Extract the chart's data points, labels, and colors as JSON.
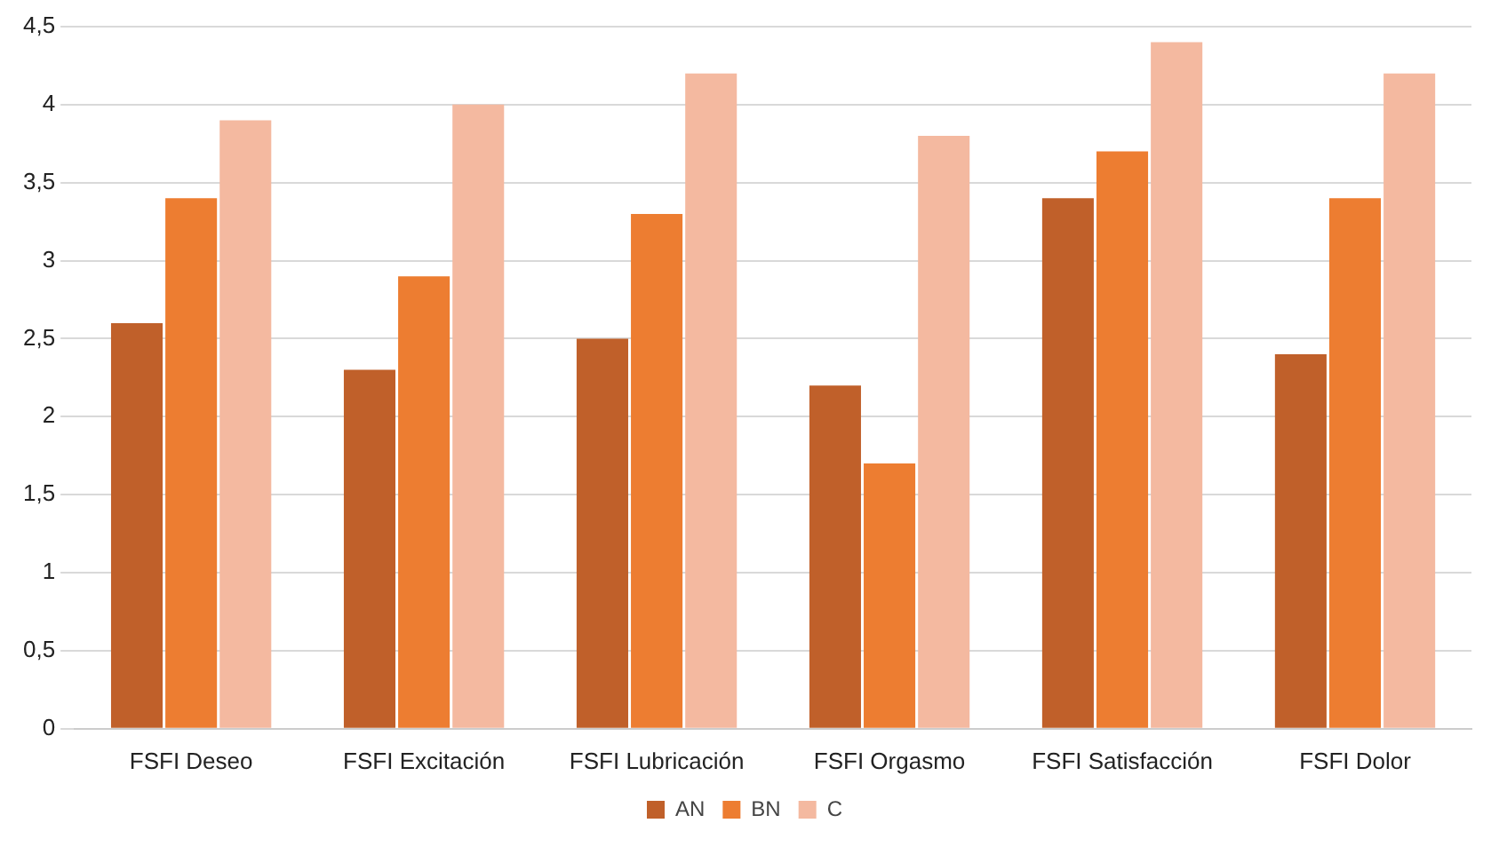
{
  "chart_data": {
    "type": "bar",
    "categories": [
      "FSFI Deseo",
      "FSFI Excitación",
      "FSFI Lubricación",
      "FSFI Orgasmo",
      "FSFI Satisfacción",
      "FSFI Dolor"
    ],
    "series": [
      {
        "name": "AN",
        "color": "#c0602a",
        "values": [
          2.6,
          2.3,
          2.5,
          2.2,
          3.4,
          2.4
        ]
      },
      {
        "name": "BN",
        "color": "#ed7d31",
        "values": [
          3.4,
          2.9,
          3.3,
          1.7,
          3.7,
          3.4
        ]
      },
      {
        "name": "C",
        "color": "#f4b9a0",
        "values": [
          3.9,
          4.0,
          4.2,
          3.8,
          4.4,
          4.2
        ]
      }
    ],
    "ylim": [
      0,
      4.5
    ],
    "yticks": [
      0,
      {
        "value": 0.5,
        "label": "0,5"
      },
      1,
      {
        "value": 1.5,
        "label": "1,5"
      },
      2,
      {
        "value": 2.5,
        "label": "2,5"
      },
      3,
      {
        "value": 3.5,
        "label": "3,5"
      },
      4,
      {
        "value": 4.5,
        "label": "4,5"
      }
    ],
    "grid": "y",
    "legend": "bottom"
  }
}
